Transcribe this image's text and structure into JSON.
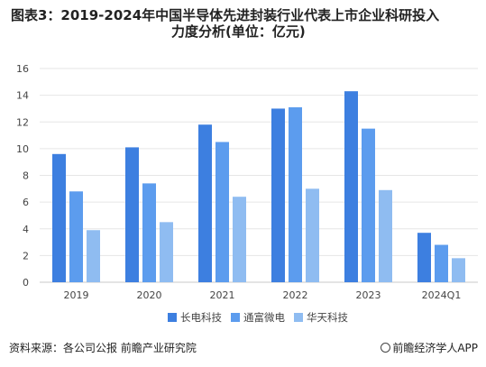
{
  "title_line1": "图表3：2019-2024年中国半导体先进封装行业代表上市企业科研投入",
  "title_line2": "力度分析(单位：亿元)",
  "footer": {
    "source": "资料来源：各公司公报 前瞻产业研究院",
    "brand": "前瞻经济学人APP"
  },
  "colors": {
    "series": [
      "#3d7fe0",
      "#5c9cee",
      "#8fbcf1"
    ],
    "grid": "#e6e6e6",
    "axis": "#c8c8c8",
    "text": "#444444"
  },
  "chart_data": {
    "type": "bar",
    "title": "",
    "xlabel": "",
    "ylabel": "",
    "categories": [
      "2019",
      "2020",
      "2021",
      "2022",
      "2023",
      "2024Q1"
    ],
    "series": [
      {
        "name": "长电科技",
        "values": [
          9.6,
          10.1,
          11.8,
          13.0,
          14.3,
          3.7
        ]
      },
      {
        "name": "通富微电",
        "values": [
          6.8,
          7.4,
          10.5,
          13.1,
          11.5,
          2.8
        ]
      },
      {
        "name": "华天科技",
        "values": [
          3.9,
          4.5,
          6.4,
          7.0,
          6.9,
          1.8
        ]
      }
    ],
    "ylim": [
      0,
      16
    ],
    "yticks": [
      0,
      2,
      4,
      6,
      8,
      10,
      12,
      14,
      16
    ],
    "grid": true,
    "legend_position": "bottom-center"
  }
}
